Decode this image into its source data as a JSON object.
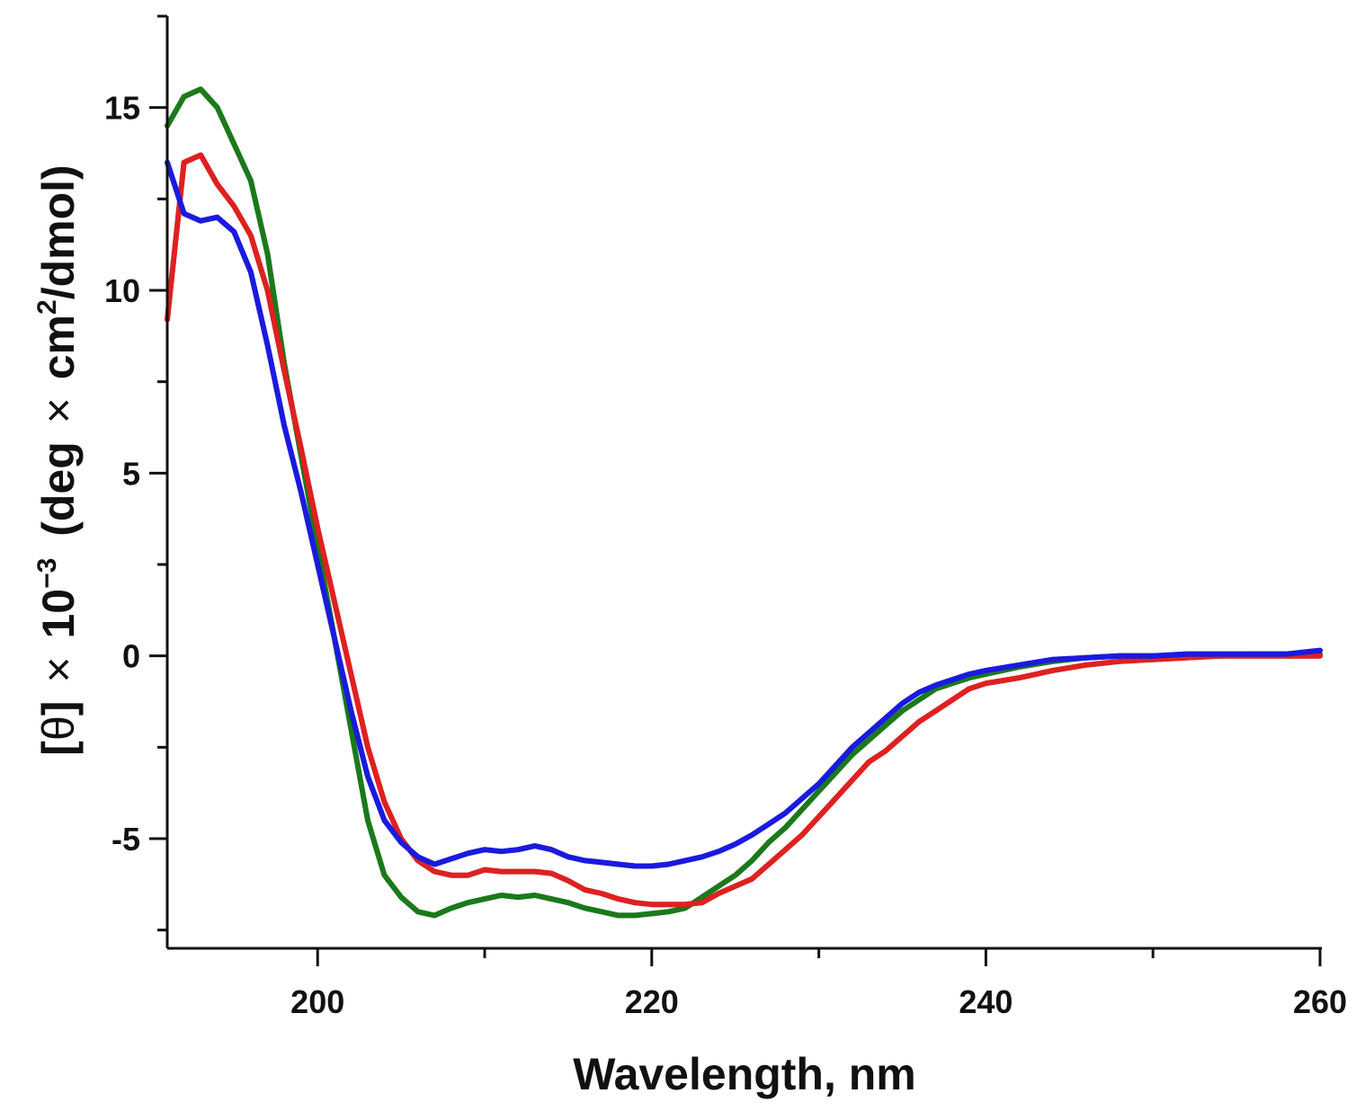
{
  "chart_data": {
    "type": "line",
    "title": "",
    "xlabel": "Wavelength, nm",
    "ylabel_parts": {
      "bracket_open": "[",
      "theta": "θ",
      "bracket_close": "]",
      "times1": "×",
      "ten": "10",
      "exponent": "−3",
      "unit_open": "(deg",
      "times2": "×",
      "cm": "cm",
      "cm_exponent": "2",
      "unit_close": "/dmol)"
    },
    "xlim": [
      191,
      260
    ],
    "ylim": [
      -8,
      17.5
    ],
    "xticks_major": [
      200,
      220,
      240,
      260
    ],
    "xticks_minor": [
      210,
      230,
      250
    ],
    "xtick_labels": [
      "200",
      "220",
      "240",
      "260"
    ],
    "yticks_major": [
      -5,
      0,
      5,
      10,
      15
    ],
    "yticks_minor": [
      -7.5,
      -2.5,
      2.5,
      7.5,
      12.5,
      17.5
    ],
    "ytick_labels": [
      "-5",
      "0",
      "5",
      "10",
      "15"
    ],
    "grid": false,
    "legend": "none",
    "series": [
      {
        "name": "green",
        "color": "#1a7a1a",
        "x": [
          191,
          192,
          193,
          194,
          195,
          196,
          197,
          198,
          199,
          200,
          201,
          202,
          203,
          204,
          205,
          206,
          207,
          208,
          209,
          210,
          211,
          212,
          213,
          214,
          215,
          216,
          217,
          218,
          219,
          220,
          221,
          222,
          223,
          224,
          225,
          226,
          227,
          228,
          229,
          230,
          231,
          232,
          233,
          234,
          235,
          236,
          237,
          238,
          239,
          240,
          242,
          244,
          246,
          248,
          250,
          252,
          254,
          256,
          258,
          260
        ],
        "y": [
          14.5,
          15.3,
          15.5,
          15.0,
          14.0,
          13.0,
          11.0,
          8.0,
          5.5,
          3.0,
          0.5,
          -2.0,
          -4.5,
          -6.0,
          -6.6,
          -7.0,
          -7.1,
          -6.9,
          -6.75,
          -6.65,
          -6.55,
          -6.6,
          -6.55,
          -6.65,
          -6.75,
          -6.9,
          -7.0,
          -7.1,
          -7.1,
          -7.05,
          -7.0,
          -6.9,
          -6.6,
          -6.3,
          -6.0,
          -5.6,
          -5.1,
          -4.7,
          -4.2,
          -3.7,
          -3.2,
          -2.7,
          -2.3,
          -1.9,
          -1.5,
          -1.2,
          -0.9,
          -0.75,
          -0.6,
          -0.5,
          -0.3,
          -0.15,
          -0.05,
          0.0,
          0.0,
          0.0,
          0.0,
          0.05,
          0.05,
          0.05
        ]
      },
      {
        "name": "red",
        "color": "#e02020",
        "x": [
          191,
          192,
          193,
          194,
          195,
          196,
          197,
          198,
          199,
          200,
          201,
          202,
          203,
          204,
          205,
          206,
          207,
          208,
          209,
          210,
          211,
          212,
          213,
          214,
          215,
          216,
          217,
          218,
          219,
          220,
          221,
          222,
          223,
          224,
          225,
          226,
          227,
          228,
          229,
          230,
          231,
          232,
          233,
          234,
          235,
          236,
          237,
          238,
          239,
          240,
          242,
          244,
          246,
          248,
          250,
          252,
          254,
          256,
          258,
          260
        ],
        "y": [
          9.2,
          13.5,
          13.7,
          12.9,
          12.3,
          11.5,
          10.0,
          7.8,
          5.7,
          3.5,
          1.5,
          -0.5,
          -2.5,
          -4.0,
          -5.0,
          -5.6,
          -5.9,
          -6.0,
          -6.0,
          -5.85,
          -5.9,
          -5.9,
          -5.9,
          -5.95,
          -6.15,
          -6.4,
          -6.5,
          -6.65,
          -6.75,
          -6.8,
          -6.8,
          -6.8,
          -6.75,
          -6.5,
          -6.3,
          -6.1,
          -5.7,
          -5.3,
          -4.9,
          -4.4,
          -3.9,
          -3.4,
          -2.9,
          -2.6,
          -2.2,
          -1.8,
          -1.5,
          -1.2,
          -0.9,
          -0.75,
          -0.6,
          -0.4,
          -0.25,
          -0.15,
          -0.1,
          -0.05,
          0.0,
          0.0,
          0.0,
          0.0
        ]
      },
      {
        "name": "blue",
        "color": "#1a1ae0",
        "x": [
          191,
          192,
          193,
          194,
          195,
          196,
          197,
          198,
          199,
          200,
          201,
          202,
          203,
          204,
          205,
          206,
          207,
          208,
          209,
          210,
          211,
          212,
          213,
          214,
          215,
          216,
          217,
          218,
          219,
          220,
          221,
          222,
          223,
          224,
          225,
          226,
          227,
          228,
          229,
          230,
          231,
          232,
          233,
          234,
          235,
          236,
          237,
          238,
          239,
          240,
          242,
          244,
          246,
          248,
          250,
          252,
          254,
          256,
          258,
          260
        ],
        "y": [
          13.5,
          12.1,
          11.9,
          12.0,
          11.6,
          10.5,
          8.5,
          6.3,
          4.5,
          2.5,
          0.5,
          -1.5,
          -3.3,
          -4.5,
          -5.1,
          -5.5,
          -5.7,
          -5.55,
          -5.4,
          -5.3,
          -5.35,
          -5.3,
          -5.2,
          -5.3,
          -5.5,
          -5.6,
          -5.65,
          -5.7,
          -5.75,
          -5.75,
          -5.7,
          -5.6,
          -5.5,
          -5.35,
          -5.15,
          -4.9,
          -4.6,
          -4.3,
          -3.9,
          -3.5,
          -3.0,
          -2.5,
          -2.1,
          -1.7,
          -1.3,
          -1.0,
          -0.8,
          -0.65,
          -0.5,
          -0.4,
          -0.25,
          -0.1,
          -0.05,
          0.0,
          0.0,
          0.05,
          0.05,
          0.05,
          0.05,
          0.15
        ]
      }
    ]
  }
}
